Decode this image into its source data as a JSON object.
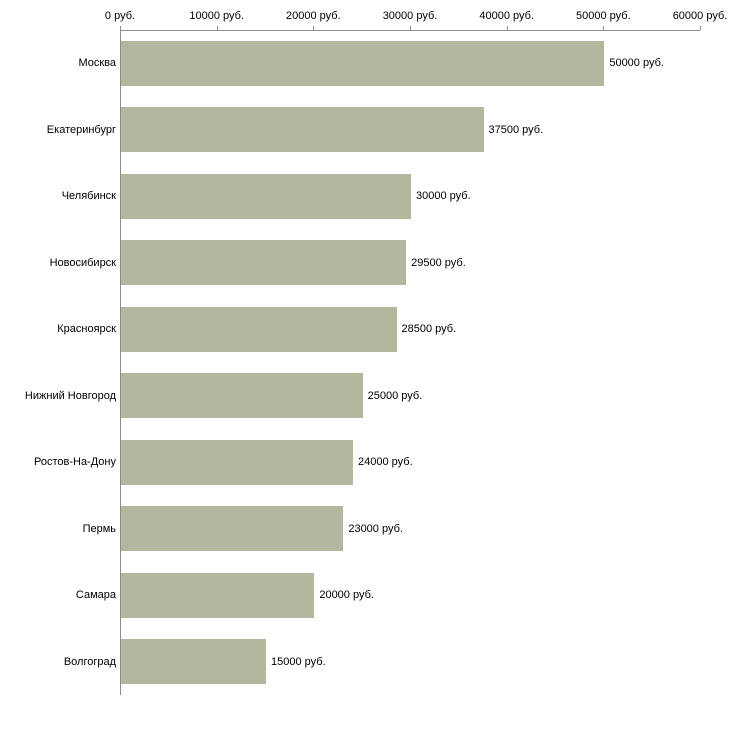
{
  "chart_data": {
    "type": "bar",
    "orientation": "horizontal",
    "title": "",
    "xlabel": "",
    "ylabel": "",
    "xlim": [
      0,
      60000
    ],
    "grid": false,
    "legend": false,
    "categories": [
      "Москва",
      "Екатеринбург",
      "Челябинск",
      "Новосибирск",
      "Красноярск",
      "Нижний Новгород",
      "Ростов-На-Дону",
      "Пермь",
      "Самара",
      "Волгоград"
    ],
    "values": [
      50000,
      37500,
      30000,
      29500,
      28500,
      25000,
      24000,
      23000,
      20000,
      15000
    ],
    "value_labels": [
      "50000 руб.",
      "37500 руб.",
      "30000 руб.",
      "29500 руб.",
      "28500 руб.",
      "25000 руб.",
      "24000 руб.",
      "23000 руб.",
      "20000 руб.",
      "15000 руб."
    ],
    "x_ticks": [
      0,
      10000,
      20000,
      30000,
      40000,
      50000,
      60000
    ],
    "x_tick_labels": [
      "0 руб.",
      "10000 руб.",
      "20000 руб.",
      "30000 руб.",
      "40000 руб.",
      "50000 руб.",
      "60000 руб."
    ],
    "bar_color": "#b2b89d",
    "axis_color": "#8c8c8c",
    "text_color": "#000000",
    "background_color": "#ffffff"
  }
}
